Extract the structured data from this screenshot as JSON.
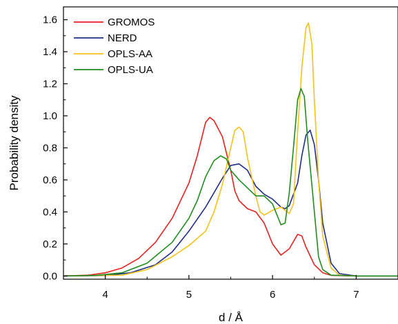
{
  "chart_data": {
    "type": "line",
    "xlabel": "d / Å",
    "ylabel": "Probability density",
    "xlim": [
      3.5,
      7.5
    ],
    "ylim": [
      -0.02,
      1.68
    ],
    "xticks": [
      4,
      5,
      6,
      7
    ],
    "xtick_labels": [
      "4",
      "5",
      "6",
      "7"
    ],
    "yticks": [
      0.0,
      0.2,
      0.4,
      0.6,
      0.8,
      1.0,
      1.2,
      1.4,
      1.6
    ],
    "ytick_labels": [
      "0.0",
      "0.2",
      "0.4",
      "0.6",
      "0.8",
      "1.0",
      "1.2",
      "1.4",
      "1.6"
    ],
    "grid": false,
    "legend_position": "top-left",
    "series": [
      {
        "name": "GROMOS",
        "color": "#e8201e",
        "points": [
          [
            3.5,
            0.0
          ],
          [
            3.8,
            0.005
          ],
          [
            4.0,
            0.02
          ],
          [
            4.2,
            0.05
          ],
          [
            4.4,
            0.11
          ],
          [
            4.6,
            0.21
          ],
          [
            4.8,
            0.36
          ],
          [
            5.0,
            0.58
          ],
          [
            5.1,
            0.75
          ],
          [
            5.2,
            0.96
          ],
          [
            5.25,
            0.99
          ],
          [
            5.3,
            0.97
          ],
          [
            5.4,
            0.87
          ],
          [
            5.5,
            0.66
          ],
          [
            5.55,
            0.53
          ],
          [
            5.6,
            0.47
          ],
          [
            5.7,
            0.42
          ],
          [
            5.8,
            0.4
          ],
          [
            5.9,
            0.33
          ],
          [
            6.0,
            0.2
          ],
          [
            6.1,
            0.13
          ],
          [
            6.2,
            0.17
          ],
          [
            6.3,
            0.26
          ],
          [
            6.35,
            0.25
          ],
          [
            6.4,
            0.18
          ],
          [
            6.5,
            0.07
          ],
          [
            6.6,
            0.02
          ],
          [
            6.7,
            0.004
          ],
          [
            7.0,
            0.0
          ],
          [
            7.5,
            0.0
          ]
        ]
      },
      {
        "name": "NERD",
        "color": "#1f2d8a",
        "points": [
          [
            3.5,
            0.0
          ],
          [
            4.0,
            0.003
          ],
          [
            4.3,
            0.02
          ],
          [
            4.6,
            0.07
          ],
          [
            4.8,
            0.15
          ],
          [
            5.0,
            0.28
          ],
          [
            5.2,
            0.43
          ],
          [
            5.4,
            0.61
          ],
          [
            5.5,
            0.69
          ],
          [
            5.6,
            0.7
          ],
          [
            5.7,
            0.66
          ],
          [
            5.8,
            0.56
          ],
          [
            5.9,
            0.51
          ],
          [
            6.0,
            0.48
          ],
          [
            6.1,
            0.43
          ],
          [
            6.15,
            0.42
          ],
          [
            6.2,
            0.44
          ],
          [
            6.3,
            0.58
          ],
          [
            6.35,
            0.75
          ],
          [
            6.4,
            0.88
          ],
          [
            6.45,
            0.91
          ],
          [
            6.5,
            0.82
          ],
          [
            6.55,
            0.6
          ],
          [
            6.6,
            0.33
          ],
          [
            6.7,
            0.08
          ],
          [
            6.8,
            0.015
          ],
          [
            7.0,
            0.0
          ],
          [
            7.5,
            0.0
          ]
        ]
      },
      {
        "name": "OPLS-AA",
        "color": "#f5c218",
        "points": [
          [
            3.5,
            0.0
          ],
          [
            4.2,
            0.005
          ],
          [
            4.5,
            0.04
          ],
          [
            4.8,
            0.12
          ],
          [
            5.0,
            0.19
          ],
          [
            5.2,
            0.28
          ],
          [
            5.3,
            0.4
          ],
          [
            5.4,
            0.57
          ],
          [
            5.5,
            0.8
          ],
          [
            5.55,
            0.91
          ],
          [
            5.6,
            0.93
          ],
          [
            5.65,
            0.9
          ],
          [
            5.7,
            0.74
          ],
          [
            5.8,
            0.5
          ],
          [
            5.85,
            0.4
          ],
          [
            5.9,
            0.38
          ],
          [
            6.0,
            0.41
          ],
          [
            6.1,
            0.43
          ],
          [
            6.2,
            0.39
          ],
          [
            6.25,
            0.45
          ],
          [
            6.3,
            0.9
          ],
          [
            6.35,
            1.3
          ],
          [
            6.4,
            1.55
          ],
          [
            6.43,
            1.58
          ],
          [
            6.47,
            1.45
          ],
          [
            6.5,
            1.1
          ],
          [
            6.55,
            0.6
          ],
          [
            6.6,
            0.25
          ],
          [
            6.7,
            0.05
          ],
          [
            6.8,
            0.005
          ],
          [
            7.0,
            0.0
          ],
          [
            7.5,
            0.0
          ]
        ]
      },
      {
        "name": "OPLS-UA",
        "color": "#1d8c1d",
        "points": [
          [
            3.5,
            0.0
          ],
          [
            3.9,
            0.004
          ],
          [
            4.2,
            0.02
          ],
          [
            4.5,
            0.08
          ],
          [
            4.8,
            0.21
          ],
          [
            5.0,
            0.36
          ],
          [
            5.1,
            0.47
          ],
          [
            5.2,
            0.62
          ],
          [
            5.3,
            0.72
          ],
          [
            5.38,
            0.75
          ],
          [
            5.45,
            0.73
          ],
          [
            5.5,
            0.66
          ],
          [
            5.6,
            0.6
          ],
          [
            5.7,
            0.55
          ],
          [
            5.8,
            0.5
          ],
          [
            5.9,
            0.5
          ],
          [
            6.0,
            0.45
          ],
          [
            6.1,
            0.32
          ],
          [
            6.15,
            0.33
          ],
          [
            6.2,
            0.52
          ],
          [
            6.25,
            0.8
          ],
          [
            6.3,
            1.1
          ],
          [
            6.34,
            1.17
          ],
          [
            6.38,
            1.12
          ],
          [
            6.42,
            0.85
          ],
          [
            6.5,
            0.4
          ],
          [
            6.55,
            0.12
          ],
          [
            6.6,
            0.04
          ],
          [
            6.7,
            0.005
          ],
          [
            7.0,
            0.0
          ],
          [
            7.5,
            0.0
          ]
        ]
      }
    ]
  }
}
